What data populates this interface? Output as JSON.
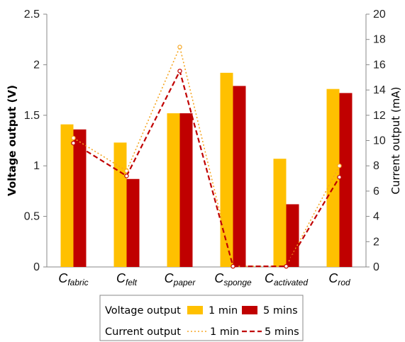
{
  "chart_data": {
    "type": "bar",
    "categories": [
      {
        "base": "C",
        "sub": "fabric"
      },
      {
        "base": "C",
        "sub": "felt"
      },
      {
        "base": "C",
        "sub": "paper"
      },
      {
        "base": "C",
        "sub": "sponge"
      },
      {
        "base": "C",
        "sub": "activated"
      },
      {
        "base": "C",
        "sub": "rod"
      }
    ],
    "ylabel": "Voltage output (V)",
    "y2label": "Current output (mA)",
    "ylim": [
      0,
      2.5
    ],
    "y2lim": [
      0,
      20
    ],
    "yticks": [
      "0",
      "0.5",
      "1",
      "1.5",
      "2",
      "2.5"
    ],
    "y2ticks": [
      "0",
      "2",
      "4",
      "6",
      "8",
      "10",
      "12",
      "14",
      "16",
      "18",
      "20"
    ],
    "bar_series": [
      {
        "name": "1 min",
        "color": "#FFC000",
        "values": [
          1.41,
          1.23,
          1.52,
          1.92,
          1.07,
          1.76
        ]
      },
      {
        "name": "5 mins",
        "color": "#C00000",
        "values": [
          1.36,
          0.87,
          1.52,
          1.79,
          0.62,
          1.72
        ]
      }
    ],
    "line_series": [
      {
        "name": "1 min",
        "color": "#F5A623",
        "style": "dotted",
        "axis": "right",
        "values": [
          10.2,
          7.6,
          17.4,
          0.05,
          0.05,
          8.0
        ]
      },
      {
        "name": "5 mins",
        "color": "#C00000",
        "style": "dashed",
        "axis": "right",
        "values": [
          9.8,
          7.2,
          15.5,
          0.05,
          0.05,
          7.1
        ]
      }
    ],
    "legend": {
      "placement": "bottom",
      "rows": [
        {
          "label": "Voltage output",
          "items": [
            {
              "name": "1 min",
              "kind": "bar",
              "color": "#FFC000"
            },
            {
              "name": "5 mins",
              "kind": "bar",
              "color": "#C00000"
            }
          ]
        },
        {
          "label": "Current output",
          "items": [
            {
              "name": "1 min",
              "kind": "line",
              "style": "dotted",
              "color": "#F5A623"
            },
            {
              "name": "5 mins",
              "kind": "line",
              "style": "dashed",
              "color": "#C00000"
            }
          ]
        }
      ]
    }
  }
}
